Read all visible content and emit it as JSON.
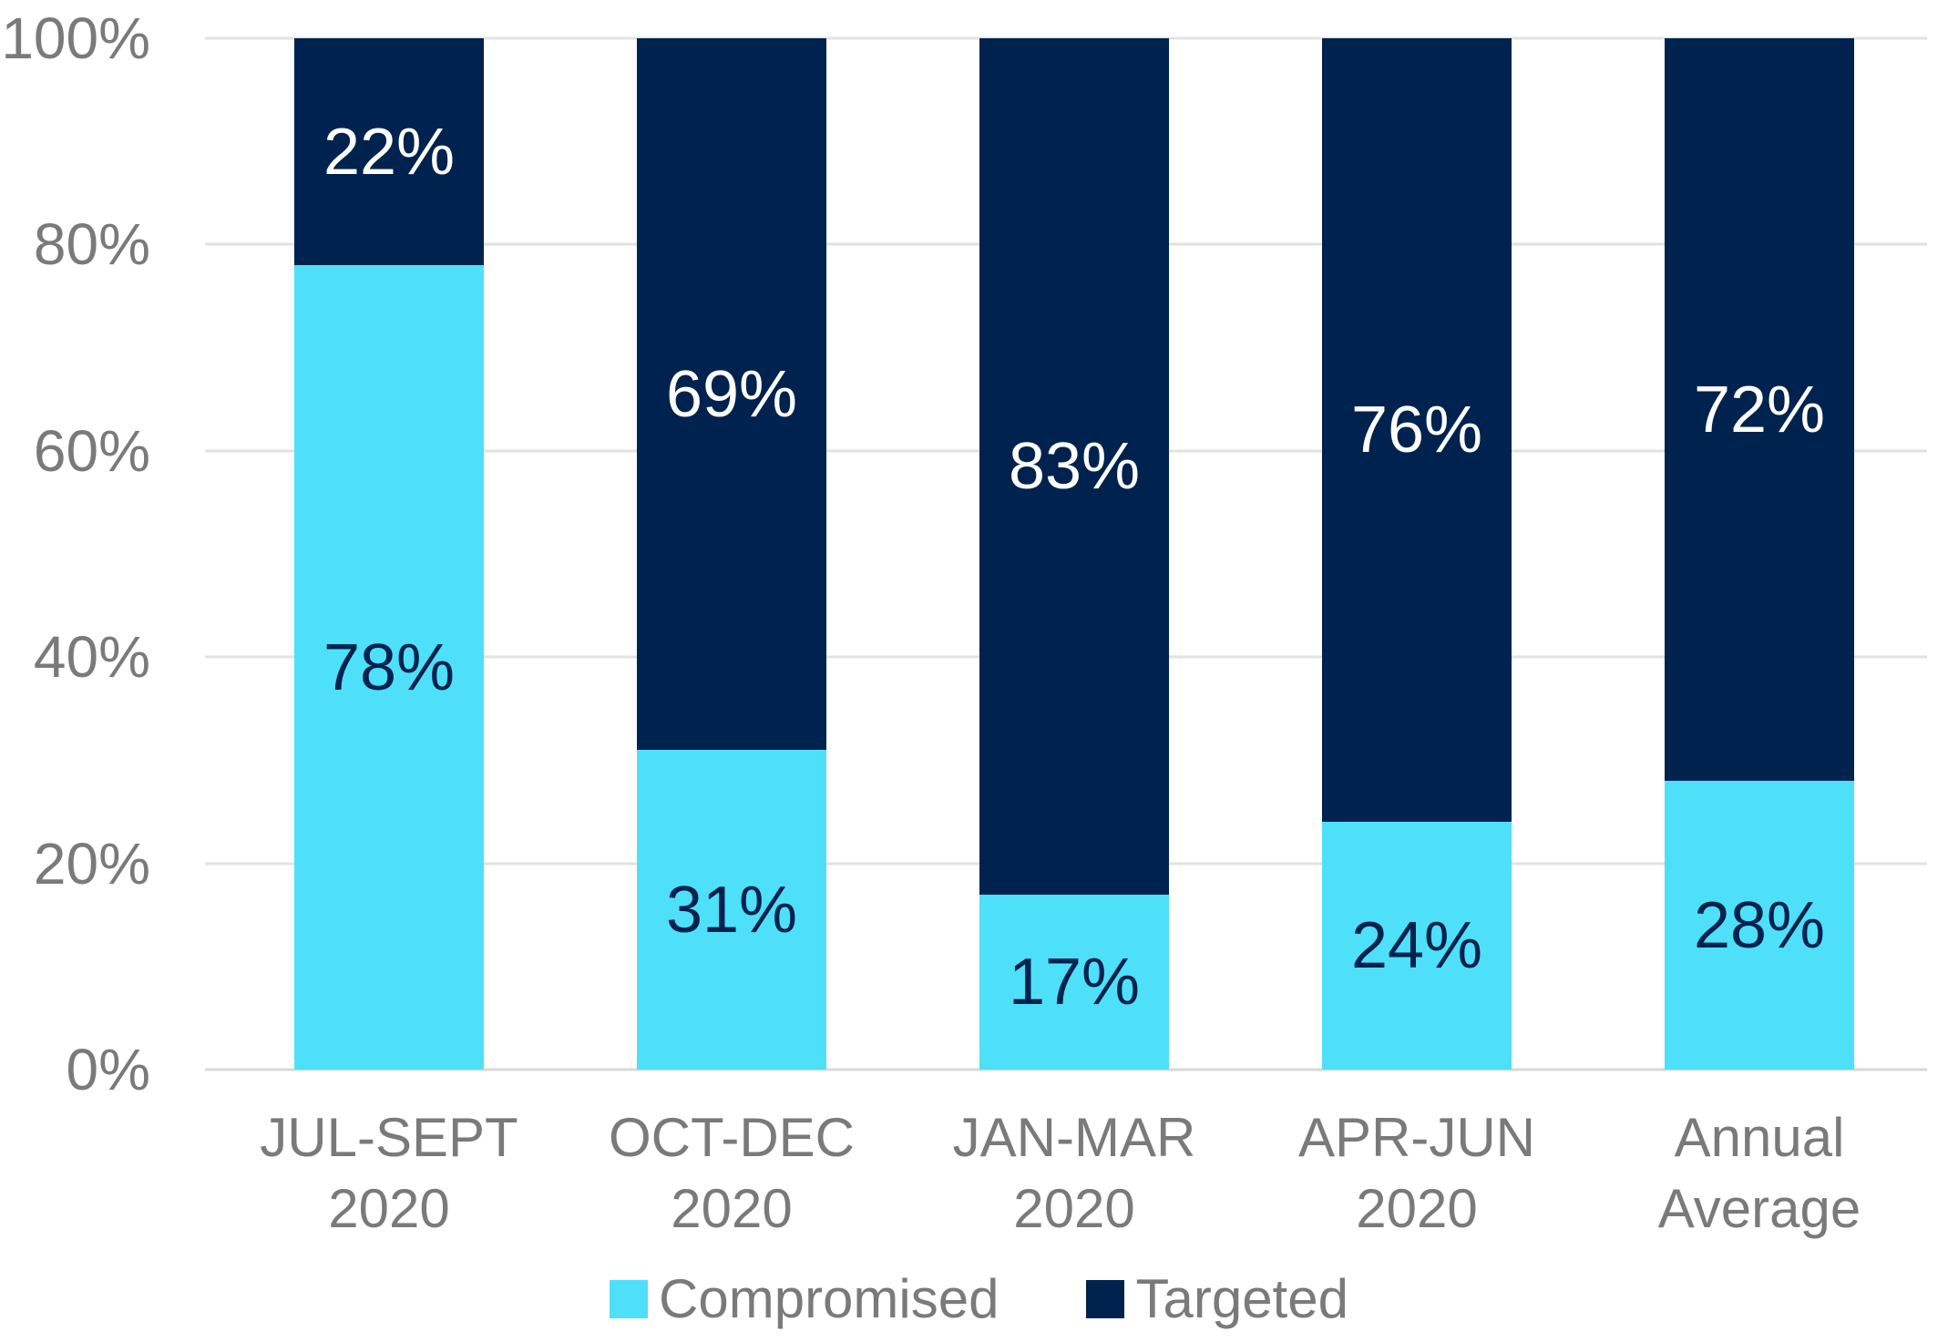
{
  "chart_data": {
    "type": "bar",
    "variant": "100-percent-stacked-column",
    "categories": [
      {
        "lines": [
          "JUL-SEPT",
          "2020"
        ]
      },
      {
        "lines": [
          "OCT-DEC",
          "2020"
        ]
      },
      {
        "lines": [
          "JAN-MAR",
          "2020"
        ]
      },
      {
        "lines": [
          "APR-JUN",
          "2020"
        ]
      },
      {
        "lines": [
          "Annual",
          "Average"
        ]
      }
    ],
    "series": [
      {
        "name": "Compromised",
        "color": "#4EE0F9",
        "label_color": "#00224E",
        "values": [
          78,
          31,
          17,
          24,
          28
        ]
      },
      {
        "name": "Targeted",
        "color": "#00224E",
        "label_color": "#FFFFFF",
        "values": [
          22,
          69,
          83,
          76,
          72
        ]
      }
    ],
    "value_suffix": "%",
    "title": "",
    "xlabel": "",
    "ylabel": "",
    "y_axis": {
      "min": 0,
      "max": 100,
      "ticks": [
        "0%",
        "20%",
        "40%",
        "60%",
        "80%",
        "100%"
      ]
    },
    "grid": "horizontal",
    "legend_position": "bottom"
  },
  "colors": {
    "background": "#FFFFFF",
    "axis_text": "#7A7A7A",
    "gridline": "#E2E2E2",
    "axis_line": "#D9D9D9",
    "series_compromised": "#4EE0F9",
    "series_targeted": "#00224E"
  }
}
